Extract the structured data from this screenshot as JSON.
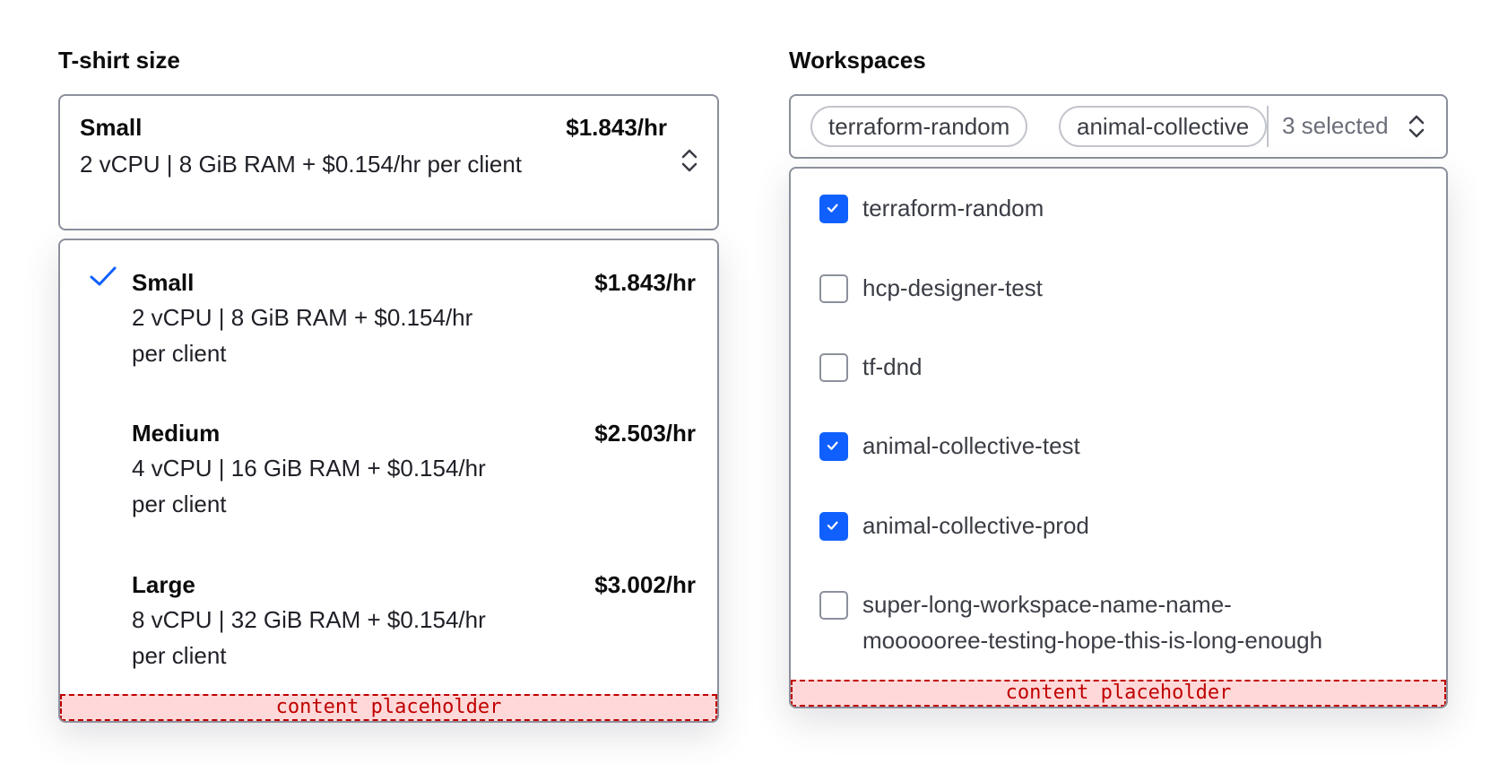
{
  "tshirt": {
    "label": "T-shirt size",
    "selected": {
      "name": "Small",
      "price": "$1.843/hr",
      "desc": "2 vCPU | 8 GiB RAM + $0.154/hr per client"
    },
    "options": [
      {
        "name": "Small",
        "price": "$1.843/hr",
        "desc1": "2 vCPU | 8 GiB RAM + $0.154/hr",
        "desc2": "per client",
        "selected": true
      },
      {
        "name": "Medium",
        "price": "$2.503/hr",
        "desc1": "4 vCPU | 16 GiB RAM + $0.154/hr",
        "desc2": "per client",
        "selected": false
      },
      {
        "name": "Large",
        "price": "$3.002/hr",
        "desc1": "8 vCPU | 32 GiB RAM + $0.154/hr",
        "desc2": "per client",
        "selected": false
      }
    ],
    "placeholder": "content placeholder"
  },
  "workspaces": {
    "label": "Workspaces",
    "chips": [
      "terraform-random",
      "animal-collective"
    ],
    "count_text": "3 selected",
    "options": [
      {
        "name": "terraform-random",
        "checked": true
      },
      {
        "name": "hcp-designer-test",
        "checked": false
      },
      {
        "name": "tf-dnd",
        "checked": false
      },
      {
        "name": "animal-collective-test",
        "checked": true
      },
      {
        "name": "animal-collective-prod",
        "checked": true
      },
      {
        "name": "super-long-workspace-name-name-moooooree-testing-hope-this-is-long-enough",
        "checked": false
      }
    ],
    "long_line1": "super-long-workspace-name-name-",
    "long_line2": "moooooree-testing-hope-this-is-long-enough",
    "placeholder": "content placeholder"
  },
  "colors": {
    "accent": "#1060ff",
    "border": "#8c909c",
    "placeholder_bg": "#ffd9d9",
    "placeholder_text": "#c00000"
  }
}
